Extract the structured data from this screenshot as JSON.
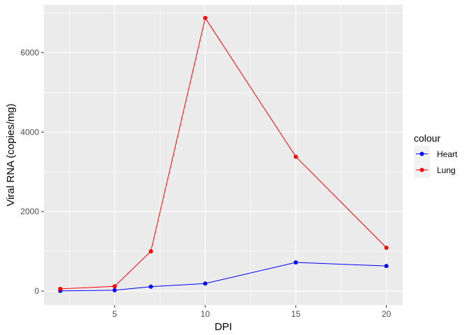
{
  "chart_data": {
    "type": "line",
    "xlabel": "DPI",
    "ylabel": "Viral RNA (copies/mg)",
    "xlim": [
      1.1,
      20.9
    ],
    "ylim": [
      -350,
      7200
    ],
    "x_ticks": [
      5,
      10,
      15,
      20
    ],
    "x_minor": [
      2.5,
      7.5,
      12.5,
      17.5
    ],
    "y_ticks": [
      0,
      2000,
      4000,
      6000
    ],
    "y_minor": [
      1000,
      3000,
      5000,
      7000
    ],
    "grid": true,
    "legend": {
      "title": "colour",
      "placement": "right"
    },
    "series": [
      {
        "name": "Heart",
        "color": "#0000ff",
        "x": [
          2,
          5,
          7,
          10,
          15,
          20
        ],
        "y": [
          5,
          20,
          110,
          190,
          720,
          630
        ]
      },
      {
        "name": "Lung",
        "color": "#ff0000",
        "x": [
          2,
          5,
          7,
          10,
          15,
          20
        ],
        "y": [
          55,
          120,
          1000,
          6870,
          3380,
          1090
        ]
      }
    ]
  }
}
